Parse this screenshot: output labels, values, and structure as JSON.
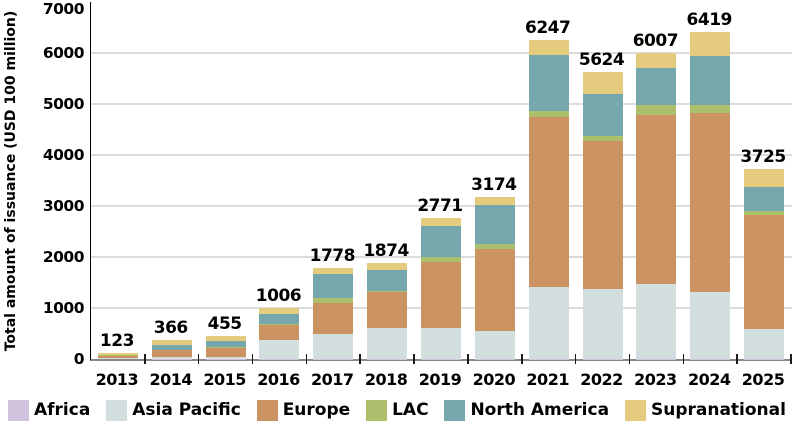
{
  "chart_data": {
    "type": "bar",
    "stacked": true,
    "title": "",
    "xlabel": "",
    "ylabel": "Total amount of issuance (USD 100 million)",
    "ylim": [
      0,
      7000
    ],
    "ytick_step": 1000,
    "grid": true,
    "legend_position": "bottom",
    "categories": [
      "2013",
      "2014",
      "2015",
      "2016",
      "2017",
      "2018",
      "2019",
      "2020",
      "2021",
      "2022",
      "2023",
      "2024",
      "2025"
    ],
    "totals": [
      123,
      366,
      455,
      1006,
      1778,
      1874,
      2771,
      3174,
      6247,
      5624,
      6007,
      6419,
      3725
    ],
    "series": [
      {
        "name": "Africa",
        "color": "#cfc4db",
        "values": [
          1,
          2,
          2,
          2,
          3,
          3,
          3,
          10,
          10,
          10,
          10,
          10,
          10
        ]
      },
      {
        "name": "Asia Pacific",
        "color": "#d2dfde",
        "values": [
          12,
          30,
          35,
          380,
          480,
          600,
          610,
          545,
          1400,
          1365,
          1465,
          1295,
          580
        ]
      },
      {
        "name": "Europe",
        "color": "#cb9262",
        "values": [
          55,
          145,
          185,
          295,
          620,
          720,
          1290,
          1594,
          3335,
          2895,
          3315,
          3525,
          2235
        ]
      },
      {
        "name": "LAC",
        "color": "#abbf6d",
        "values": [
          5,
          10,
          8,
          10,
          90,
          15,
          95,
          105,
          110,
          100,
          200,
          150,
          72
        ]
      },
      {
        "name": "North America",
        "color": "#76a7ad",
        "values": [
          5,
          90,
          130,
          195,
          475,
          405,
          620,
          760,
          1100,
          820,
          720,
          970,
          470
        ]
      },
      {
        "name": "Supranational",
        "color": "#e5cb7e",
        "values": [
          45,
          89,
          95,
          124,
          110,
          131,
          153,
          160,
          292,
          434,
          297,
          469,
          358
        ]
      }
    ],
    "colors": {
      "gridline": "#dcdcdc",
      "y_axis": "#000000",
      "x_axis": "#898989",
      "tick": "#1a1a1a",
      "text": "#000000"
    }
  }
}
